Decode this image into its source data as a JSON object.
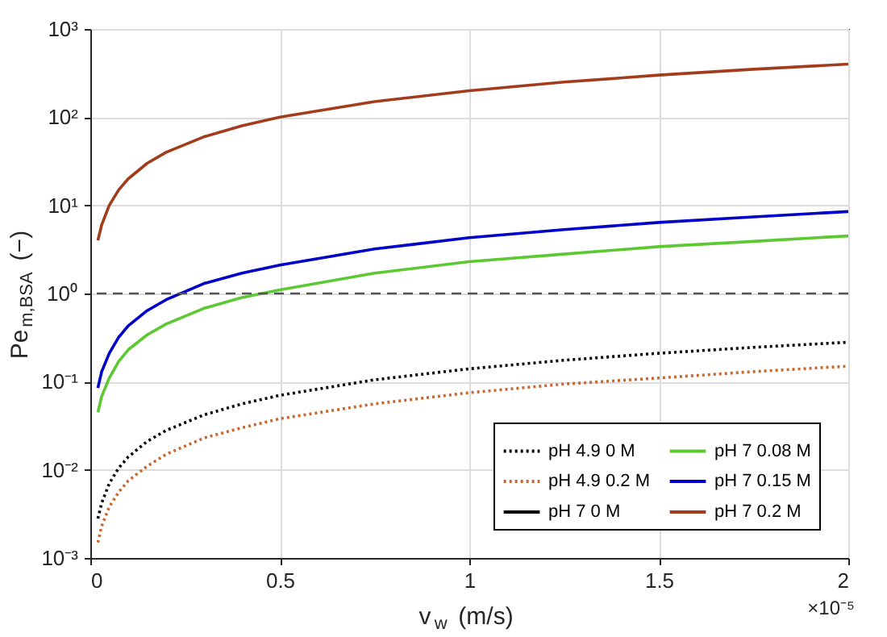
{
  "chart_data": {
    "type": "line",
    "xlabel": "v$_{w}$ (m/s)",
    "ylabel": "Pe$_{m,BSA}$ (−)",
    "x": [
      0.02,
      0.03,
      0.05,
      0.075,
      0.1,
      0.15,
      0.2,
      0.3,
      0.4,
      0.5,
      0.75,
      1,
      1.25,
      1.5,
      1.75,
      2
    ],
    "series": [
      {
        "name": "pH 4.9 0 M",
        "color": "#000000",
        "line_style": "dotted",
        "values": [
          0.0028,
          0.0042,
          0.007,
          0.0105,
          0.014,
          0.021,
          0.028,
          0.042,
          0.056,
          0.07,
          0.105,
          0.14,
          0.175,
          0.21,
          0.245,
          0.28
        ]
      },
      {
        "name": "pH 4.9 0.2 M",
        "color": "#c8682e",
        "line_style": "dotted",
        "values": [
          0.0015,
          0.0023,
          0.0038,
          0.0056,
          0.0075,
          0.011,
          0.015,
          0.023,
          0.03,
          0.038,
          0.056,
          0.075,
          0.094,
          0.11,
          0.13,
          0.15
        ]
      },
      {
        "name": "pH 7 0 M",
        "color": "#000000",
        "line_style": "solid",
        "values": [
          null,
          null,
          null,
          null,
          null,
          null,
          null,
          null,
          null,
          null,
          null,
          null,
          null,
          null,
          null,
          null
        ]
      },
      {
        "name": "pH 7 0.08 M",
        "color": "#5cc832",
        "line_style": "solid",
        "values": [
          0.045,
          0.068,
          0.11,
          0.17,
          0.23,
          0.34,
          0.45,
          0.68,
          0.9,
          1.1,
          1.7,
          2.3,
          2.8,
          3.4,
          3.9,
          4.5
        ]
      },
      {
        "name": "pH 7 0.15 M",
        "color": "#0000c8",
        "line_style": "solid",
        "values": [
          0.085,
          0.13,
          0.21,
          0.32,
          0.43,
          0.64,
          0.85,
          1.3,
          1.7,
          2.1,
          3.2,
          4.3,
          5.3,
          6.4,
          7.4,
          8.5
        ]
      },
      {
        "name": "pH 7 0.2 M",
        "color": "#a33c1c",
        "line_style": "solid",
        "values": [
          4,
          6,
          10,
          15,
          20,
          30,
          40,
          60,
          80,
          100,
          150,
          200,
          250,
          300,
          350,
          400
        ]
      }
    ],
    "xlim": [
      0,
      2
    ],
    "xticks": [
      0,
      0.5,
      1,
      1.5,
      2
    ],
    "ylim": [
      0.001,
      1000
    ],
    "yticks": [
      {
        "value": 0.001,
        "label": "10⁻³"
      },
      {
        "value": 0.01,
        "label": "10⁻²"
      },
      {
        "value": 0.1,
        "label": "10⁻¹"
      },
      {
        "value": 1,
        "label": "10⁰"
      },
      {
        "value": 10,
        "label": "10¹"
      },
      {
        "value": 100,
        "label": "10²"
      },
      {
        "value": 1000,
        "label": "10³"
      }
    ],
    "log": "y",
    "grid": true,
    "legend": "bottom right",
    "marker": "none",
    "ref_lines": [
      {
        "axis": "y",
        "value": 1,
        "color": "#555555",
        "line_style": "dashed"
      }
    ],
    "annotations": [
      "×10⁻⁵"
    ]
  }
}
